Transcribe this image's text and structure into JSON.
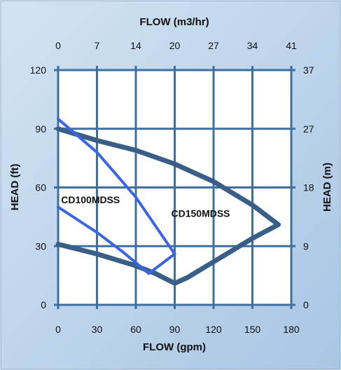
{
  "chart_data": {
    "type": "line",
    "title": "",
    "xlabel": "FLOW (gpm)",
    "ylabel": "HEAD (ft)",
    "x2label": "FLOW (m3/hr)",
    "y2label": "HEAD (m)",
    "xlim": [
      0,
      180
    ],
    "ylim": [
      0,
      120
    ],
    "x_ticks": [
      "0",
      "30",
      "60",
      "90",
      "120",
      "150",
      "180"
    ],
    "y_ticks": [
      "0",
      "30",
      "60",
      "90",
      "120"
    ],
    "x2_ticks": [
      "0",
      "7",
      "14",
      "20",
      "27",
      "34",
      "41"
    ],
    "y2_ticks": [
      "0",
      "9",
      "18",
      "27",
      "37"
    ],
    "grid": true,
    "colors": {
      "background_outer": "#b9d2ea",
      "background_plot": "#ffffff",
      "grid": "#3f6f9f",
      "CD150MDSS": "#3a5f86",
      "CD100MDSS": "#3a66e0"
    },
    "series": [
      {
        "name": "CD150MDSS",
        "label_position": [
          110,
          45
        ],
        "points": [
          [
            0,
            90
          ],
          [
            30,
            84
          ],
          [
            60,
            79
          ],
          [
            90,
            72
          ],
          [
            120,
            63
          ],
          [
            150,
            51
          ],
          [
            170,
            41
          ],
          [
            150,
            34
          ],
          [
            120,
            22
          ],
          [
            100,
            14
          ],
          [
            90,
            11
          ],
          [
            75,
            16
          ],
          [
            60,
            20
          ],
          [
            30,
            26
          ],
          [
            0,
            31
          ]
        ]
      },
      {
        "name": "CD100MDSS",
        "label_position": [
          25,
          52
        ],
        "points": [
          [
            0,
            95
          ],
          [
            30,
            78
          ],
          [
            60,
            55
          ],
          [
            90,
            26
          ],
          [
            80,
            21
          ],
          [
            70,
            16
          ],
          [
            50,
            27
          ],
          [
            30,
            37
          ],
          [
            0,
            50
          ]
        ]
      }
    ]
  }
}
